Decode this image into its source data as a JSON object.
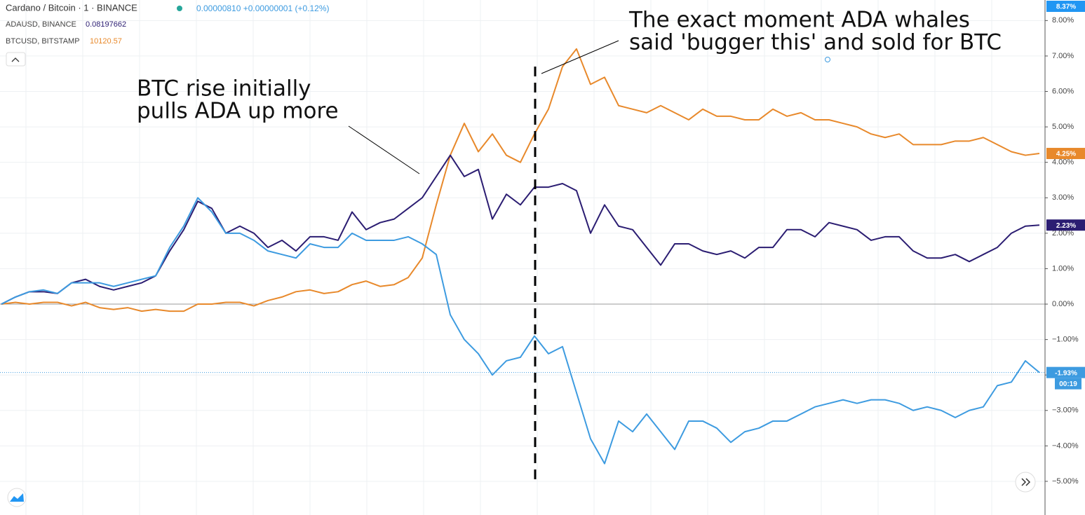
{
  "chart_data": {
    "type": "line",
    "header": {
      "title": "Cardano / Bitcoin · 1 · BINANCE",
      "quote": "0.00000810 +0.00000001 (+0.12%)"
    },
    "categories": [
      null,
      null,
      null,
      null,
      null,
      null,
      null,
      null,
      null,
      null,
      null,
      null,
      null,
      null,
      null,
      null,
      null,
      null,
      null,
      null,
      null,
      null,
      null,
      null,
      null,
      null,
      null,
      null,
      null,
      null,
      null,
      null,
      null,
      null,
      null,
      null,
      null,
      null,
      null,
      null,
      null,
      null,
      null,
      null,
      null,
      null,
      null,
      null,
      null,
      null,
      null,
      null,
      null,
      null,
      null,
      null,
      null,
      null,
      null,
      null,
      null,
      null,
      null,
      null,
      null,
      null,
      null,
      null,
      null,
      null,
      null,
      null,
      null,
      null,
      null
    ],
    "series": [
      {
        "name": "BTCUSD, BITSTAMP",
        "legend_value": "10120.57",
        "color": "#e8892b",
        "last_label": "4.25%",
        "values": [
          0,
          0.05,
          0,
          0.05,
          0.05,
          -0.05,
          0.05,
          -0.1,
          -0.15,
          -0.1,
          -0.2,
          -0.15,
          -0.2,
          -0.2,
          0,
          0,
          0.05,
          0.05,
          -0.05,
          0.1,
          0.2,
          0.35,
          0.4,
          0.3,
          0.35,
          0.55,
          0.65,
          0.5,
          0.55,
          0.75,
          1.3,
          2.8,
          4.2,
          5.1,
          4.3,
          4.8,
          4.2,
          4.0,
          4.8,
          5.5,
          6.7,
          7.2,
          6.2,
          6.4,
          5.6,
          5.5,
          5.4,
          5.6,
          5.4,
          5.2,
          5.5,
          5.3,
          5.3,
          5.2,
          5.2,
          5.5,
          5.3,
          5.4,
          5.2,
          5.2,
          5.1,
          5.0,
          4.8,
          4.7,
          4.8,
          4.5,
          4.5,
          4.5,
          4.6,
          4.6,
          4.7,
          4.5,
          4.3,
          4.2,
          4.25
        ]
      },
      {
        "name": "ADAUSD, BINANCE",
        "legend_value": "0.08197662",
        "color": "#2b1d72",
        "last_label": "2.23%",
        "values": [
          0,
          0.2,
          0.35,
          0.35,
          0.3,
          0.6,
          0.7,
          0.5,
          0.4,
          0.5,
          0.6,
          0.8,
          1.5,
          2.1,
          2.9,
          2.7,
          2.0,
          2.2,
          2.0,
          1.6,
          1.8,
          1.5,
          1.9,
          1.9,
          1.8,
          2.6,
          2.1,
          2.3,
          2.4,
          2.7,
          3.0,
          3.6,
          4.2,
          3.6,
          3.8,
          2.4,
          3.1,
          2.8,
          3.3,
          3.3,
          3.4,
          3.2,
          2.0,
          2.8,
          2.2,
          2.1,
          1.6,
          1.1,
          1.7,
          1.7,
          1.5,
          1.4,
          1.5,
          1.3,
          1.6,
          1.6,
          2.1,
          2.1,
          1.9,
          2.3,
          2.2,
          2.1,
          1.8,
          1.9,
          1.9,
          1.5,
          1.3,
          1.3,
          1.4,
          1.2,
          1.4,
          1.6,
          2.0,
          2.2,
          2.23
        ]
      },
      {
        "name": "Cardano / Bitcoin",
        "color": "#3d9be0",
        "last_label": "-1.93%",
        "countdown": "00:19",
        "values": [
          0,
          0.2,
          0.35,
          0.4,
          0.3,
          0.6,
          0.6,
          0.6,
          0.5,
          0.6,
          0.7,
          0.8,
          1.6,
          2.2,
          3.0,
          2.6,
          2.0,
          2.0,
          1.8,
          1.5,
          1.4,
          1.3,
          1.7,
          1.6,
          1.6,
          2.0,
          1.8,
          1.8,
          1.8,
          1.9,
          1.7,
          1.4,
          -0.3,
          -1.0,
          -1.4,
          -2.0,
          -1.6,
          -1.5,
          -0.9,
          -1.4,
          -1.2,
          -2.5,
          -3.8,
          -4.5,
          -3.3,
          -3.6,
          -3.1,
          -3.6,
          -4.1,
          -3.3,
          -3.3,
          -3.5,
          -3.9,
          -3.6,
          -3.5,
          -3.3,
          -3.3,
          -3.1,
          -2.9,
          -2.8,
          -2.7,
          -2.8,
          -2.7,
          -2.7,
          -2.8,
          -3.0,
          -2.9,
          -3.0,
          -3.2,
          -3.0,
          -2.9,
          -2.3,
          -2.2,
          -1.6,
          -1.93
        ]
      }
    ],
    "scale_top_label": "8.37%",
    "ylim": [
      -5.95,
      8.58
    ],
    "yticks": [
      {
        "value": 8,
        "label": "8.00%"
      },
      {
        "value": 7,
        "label": "7.00%"
      },
      {
        "value": 6,
        "label": "6.00%"
      },
      {
        "value": 5,
        "label": "5.00%"
      },
      {
        "value": 4,
        "label": "4.00%"
      },
      {
        "value": 3,
        "label": "3.00%"
      },
      {
        "value": 2,
        "label": "2.00%"
      },
      {
        "value": 1,
        "label": "1.00%"
      },
      {
        "value": 0,
        "label": "0.00%"
      },
      {
        "value": -1,
        "label": "−1.00%"
      },
      {
        "value": -2,
        "label": "−2.00%"
      },
      {
        "value": -3,
        "label": "−3.00%"
      },
      {
        "value": -4,
        "label": "−4.00%"
      },
      {
        "value": -5,
        "label": "−5.00%"
      }
    ],
    "grid": true,
    "annotations": [
      {
        "lines": [
          "BTC rise initially",
          "pulls ADA up more"
        ]
      },
      {
        "lines": [
          "The exact moment ADA whales",
          "said 'bugger this' and sold for BTC"
        ]
      }
    ]
  }
}
